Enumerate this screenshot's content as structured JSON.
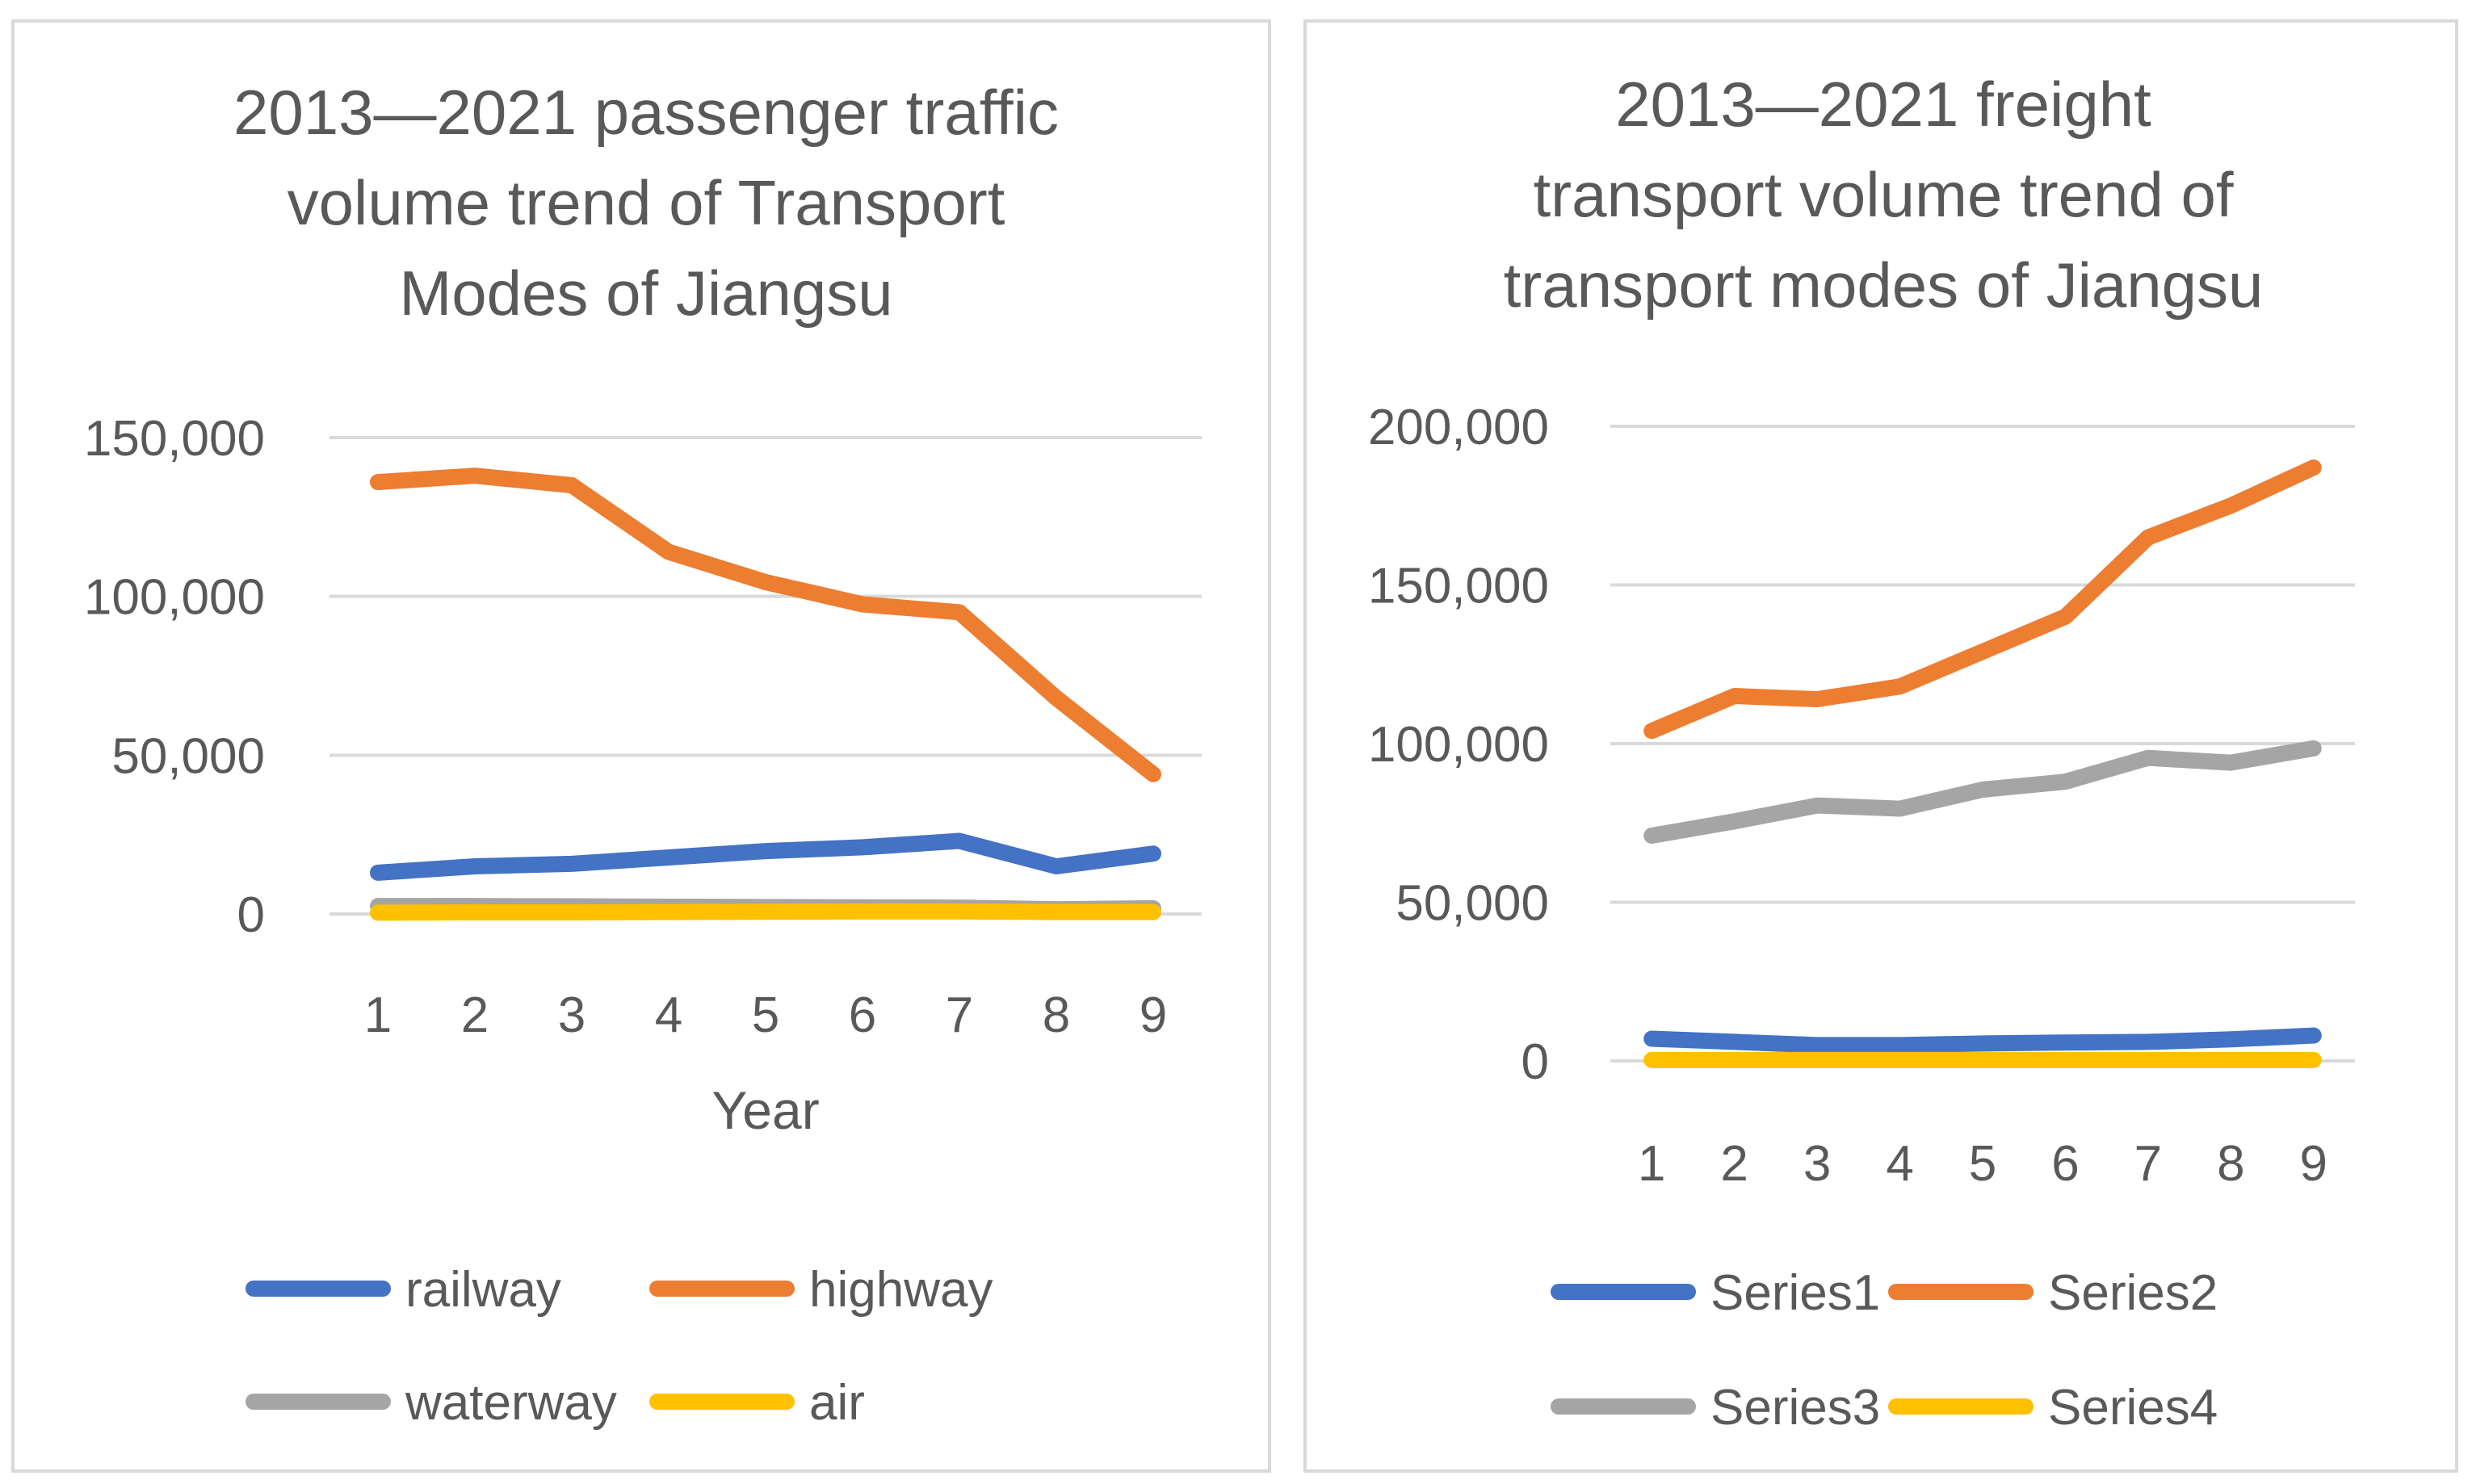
{
  "chart_data": [
    {
      "type": "line",
      "title_lines": [
        "2013—2021 passenger traffic",
        "volume trend of Transport",
        "Modes of Jiangsu"
      ],
      "xlabel": "Year",
      "ylabel": "",
      "categories": [
        "1",
        "2",
        "3",
        "4",
        "5",
        "6",
        "7",
        "8",
        "9"
      ],
      "ylim": [
        0,
        150000
      ],
      "yticks": [
        0,
        50000,
        100000,
        150000
      ],
      "ytick_labels": [
        "0",
        "50,000",
        "100,000",
        "150,000"
      ],
      "grid": true,
      "legend_position": "bottom",
      "series": [
        {
          "name": "railway",
          "color": "#4472c4",
          "values": [
            13000,
            15000,
            15800,
            17800,
            19800,
            21000,
            23000,
            15000,
            19000
          ]
        },
        {
          "name": "highway",
          "color": "#ed7d31",
          "values": [
            136000,
            138000,
            135000,
            114000,
            104500,
            97500,
            95000,
            68000,
            44000
          ]
        },
        {
          "name": "waterway",
          "color": "#a5a5a5",
          "values": [
            2500,
            2500,
            2400,
            2300,
            2200,
            2100,
            2000,
            1500,
            1800
          ]
        },
        {
          "name": "air",
          "color": "#ffc000",
          "values": [
            400,
            500,
            500,
            600,
            700,
            800,
            800,
            600,
            600
          ]
        }
      ]
    },
    {
      "type": "line",
      "title_lines": [
        "2013—2021 freight",
        "transport volume trend of",
        "transport modes of Jiangsu"
      ],
      "xlabel": "",
      "ylabel": "",
      "categories": [
        "1",
        "2",
        "3",
        "4",
        "5",
        "6",
        "7",
        "8",
        "9"
      ],
      "ylim": [
        0,
        200000
      ],
      "yticks": [
        0,
        50000,
        100000,
        150000,
        200000
      ],
      "ytick_labels": [
        "0",
        "50,000",
        "100,000",
        "150,000",
        "200,000"
      ],
      "grid": true,
      "legend_position": "bottom",
      "series": [
        {
          "name": "Series1",
          "color": "#4472c4",
          "values": [
            7000,
            6000,
            5000,
            5000,
            5500,
            5800,
            6000,
            6800,
            8000
          ]
        },
        {
          "name": "Series2",
          "color": "#ed7d31",
          "values": [
            104000,
            115000,
            114000,
            118000,
            129000,
            140000,
            165000,
            175000,
            187000
          ]
        },
        {
          "name": "Series3",
          "color": "#a5a5a5",
          "values": [
            71000,
            75500,
            80500,
            79500,
            85500,
            88000,
            95500,
            94000,
            98500
          ]
        },
        {
          "name": "Series4",
          "color": "#ffc000",
          "values": [
            300,
            300,
            300,
            300,
            300,
            300,
            300,
            300,
            300
          ]
        }
      ]
    }
  ]
}
